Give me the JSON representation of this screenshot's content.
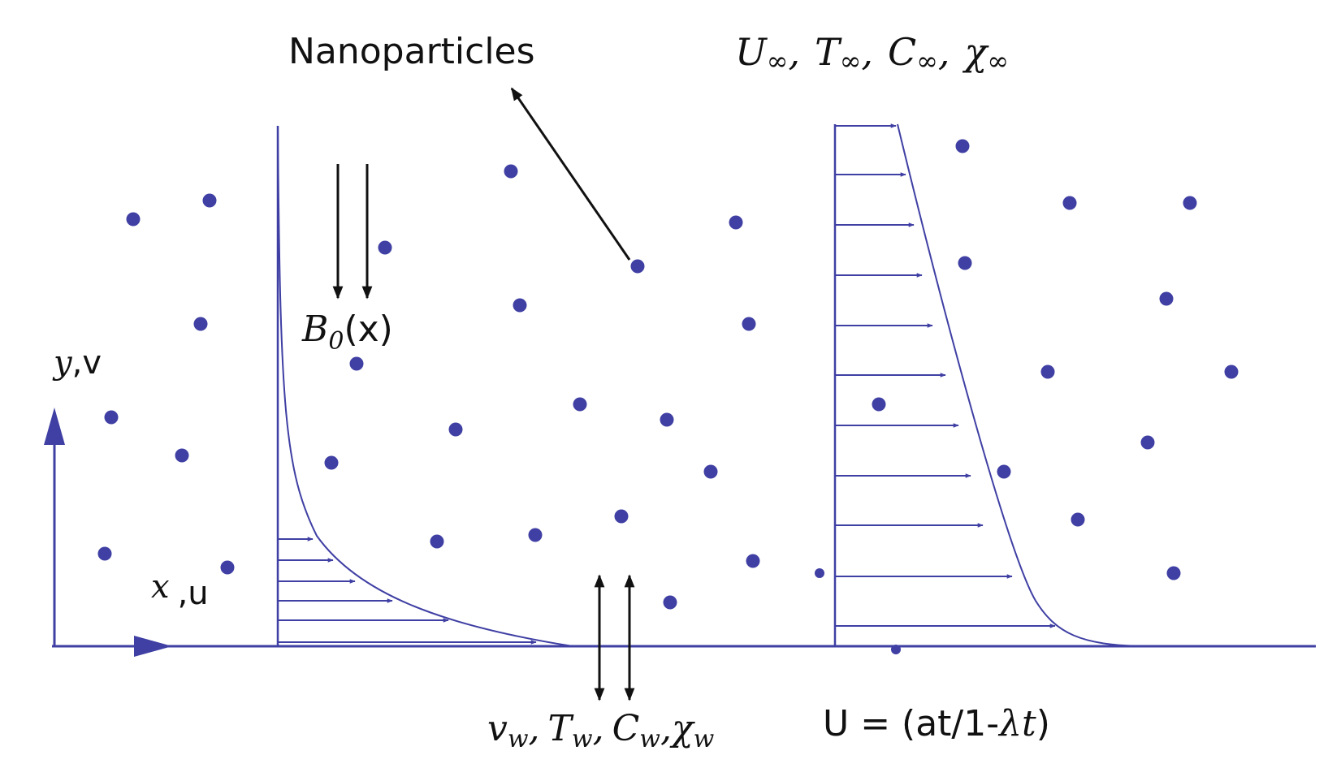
{
  "colors": {
    "diagram_blue": "#3f3fa4",
    "black": "#111111",
    "background": "#ffffff"
  },
  "labels": {
    "nanoparticles": "Nanoparticles",
    "freestream_U": "U",
    "freestream_T": "T",
    "freestream_C": "C",
    "freestream_chi": "χ",
    "infinity": "∞",
    "freestream_sep": ",",
    "magnetic_B": "B",
    "magnetic_sub": "0",
    "magnetic_arg": "(x)",
    "axis_y": "y",
    "axis_y_suffix": ",v",
    "axis_x": "x",
    "axis_x_suffix": ",u",
    "wall_v": "v",
    "wall_T": "T",
    "wall_C": "C",
    "wall_chi": "χ",
    "wall_sub": "w",
    "wall_sep": ",",
    "velocity_prefix": "U = (at/1-",
    "velocity_lambda": "λ",
    "velocity_t": "t",
    "velocity_suffix": ")"
  },
  "icons": {
    "nanoparticle": "filled-circle-dot",
    "field_arrow": "down-arrow",
    "suction_arrow": "double-headed-vertical-arrow",
    "profile_arrow": "right-arrow"
  }
}
